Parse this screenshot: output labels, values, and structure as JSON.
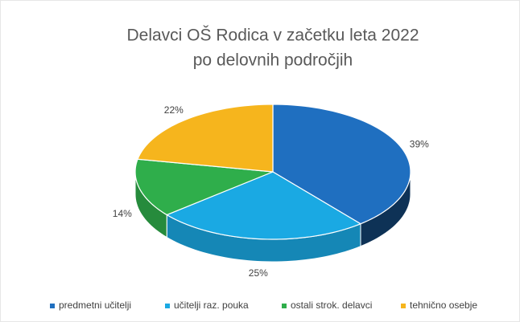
{
  "chart_data": {
    "type": "pie3d",
    "title": [
      "Delavci OŠ Rodica v začetku leta 2022",
      "po delovnih področjih"
    ],
    "categories": [
      "predmetni učitelji",
      "učitelji raz. pouka",
      "ostali strok. delavci",
      "tehnično osebje"
    ],
    "values": [
      39,
      25,
      14,
      22
    ],
    "value_labels": [
      "39%",
      "25%",
      "14%",
      "22%"
    ],
    "colors": [
      "#1f6fc0",
      "#1aa9e3",
      "#2fae4b",
      "#f6b51d"
    ],
    "legend": "bottom"
  }
}
